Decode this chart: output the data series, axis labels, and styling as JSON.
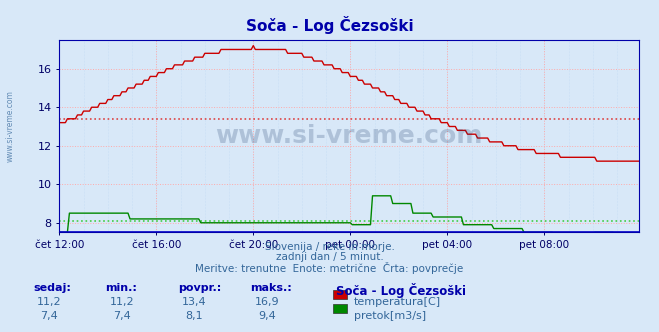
{
  "title": "Soča - Log Čezsoški",
  "fig_bg_color": "#d8e8f8",
  "plot_bg_color": "#d8e8f8",
  "xlabel_ticks": [
    "čet 12:00",
    "čet 16:00",
    "čet 20:00",
    "pet 00:00",
    "pet 04:00",
    "pet 08:00"
  ],
  "tick_positions": [
    0,
    48,
    96,
    144,
    192,
    240
  ],
  "xlim": [
    0,
    287
  ],
  "ylim": [
    7.5,
    17.5
  ],
  "yticks": [
    8,
    10,
    12,
    14,
    16
  ],
  "temp_avg": 13.4,
  "flow_avg": 8.1,
  "temp_color": "#cc0000",
  "flow_color": "#008800",
  "avg_temp_color": "#dd4444",
  "avg_flow_color": "#44cc44",
  "watermark_color": "#1a3a6a",
  "subtitle1": "Slovenija / reke in morje.",
  "subtitle2": "zadnji dan / 5 minut.",
  "subtitle3": "Meritve: trenutne  Enote: metrične  Črta: povprečje",
  "legend_title": "Soča - Log Čezsoški",
  "stats_labels": [
    "sedaj:",
    "min.:",
    "povpr.:",
    "maks.:"
  ],
  "temp_stats": [
    "11,2",
    "11,2",
    "13,4",
    "16,9"
  ],
  "flow_stats": [
    "7,4",
    "7,4",
    "8,1",
    "9,4"
  ],
  "temp_label": "temperatura[C]",
  "flow_label": "pretok[m3/s]",
  "num_points": 288
}
